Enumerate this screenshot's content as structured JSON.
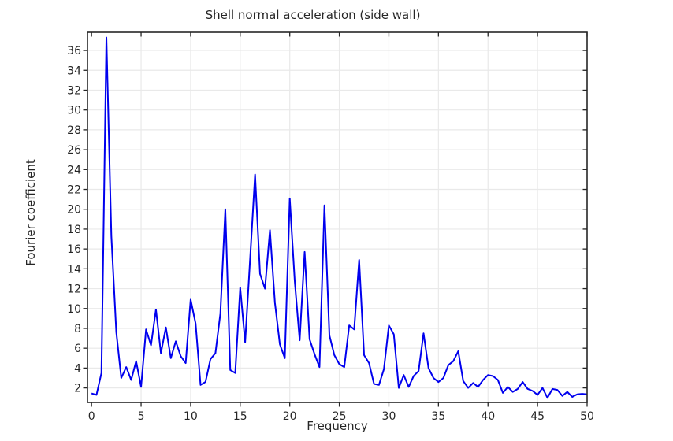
{
  "window": {
    "background": "#ffffff"
  },
  "chart_data": {
    "type": "line",
    "title": "Shell normal acceleration (side wall)",
    "xlabel": "Frequency",
    "ylabel": "Fourier coefficient",
    "xlim": [
      -0.41,
      50.0
    ],
    "ylim": [
      0.54,
      37.83
    ],
    "x_ticks": [
      0,
      5,
      10,
      15,
      20,
      25,
      30,
      35,
      40,
      45,
      50
    ],
    "y_ticks": [
      2,
      4,
      6,
      8,
      10,
      12,
      14,
      16,
      18,
      20,
      22,
      24,
      26,
      28,
      30,
      32,
      34,
      36
    ],
    "grid": true,
    "legend_position": "none",
    "colors": {
      "line": "#0000ee",
      "grid": "#e9e9e9",
      "frame": "#262626",
      "text": "#262626",
      "background": "#ffffff"
    },
    "series": [
      {
        "name": "Shell normal acceleration",
        "x_start": 0,
        "x_step": 0.5,
        "y": [
          1.45,
          1.3,
          3.5,
          37.3,
          17.3,
          7.6,
          3.0,
          4.1,
          2.8,
          4.7,
          2.1,
          7.9,
          6.3,
          9.9,
          5.5,
          8.1,
          5.0,
          6.7,
          5.2,
          4.5,
          10.9,
          8.5,
          2.3,
          2.6,
          4.9,
          5.5,
          9.5,
          20.0,
          3.8,
          3.5,
          12.1,
          6.6,
          15.0,
          23.5,
          13.5,
          12.0,
          17.9,
          10.6,
          6.4,
          5.0,
          21.1,
          12.8,
          6.8,
          15.7,
          6.9,
          5.4,
          4.1,
          20.4,
          7.3,
          5.3,
          4.4,
          4.1,
          8.3,
          7.9,
          14.9,
          5.3,
          4.5,
          2.4,
          2.3,
          3.9,
          8.3,
          7.4,
          2.0,
          3.3,
          2.1,
          3.2,
          3.7,
          7.5,
          4.0,
          3.0,
          2.6,
          3.0,
          4.3,
          4.7,
          5.7,
          2.7,
          2.0,
          2.5,
          2.1,
          2.8,
          3.3,
          3.2,
          2.8,
          1.5,
          2.1,
          1.6,
          1.9,
          2.6,
          1.9,
          1.7,
          1.3,
          2.0,
          1.0,
          1.9,
          1.8,
          1.2,
          1.6,
          1.1,
          1.35,
          1.4,
          1.35
        ]
      }
    ]
  }
}
